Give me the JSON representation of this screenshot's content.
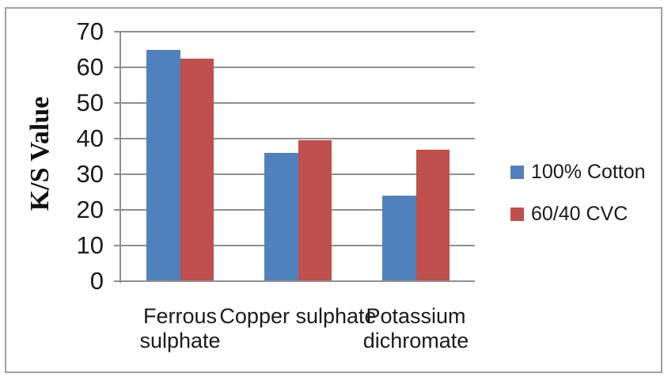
{
  "chart_data": {
    "type": "bar",
    "title": "",
    "categories": [
      "Ferrous sulphate",
      "Copper sulphate",
      "Potassium dichromate"
    ],
    "series": [
      {
        "name": "100% Cotton",
        "color": "#4f81bd",
        "values": [
          65,
          36,
          24
        ]
      },
      {
        "name": "60/40 CVC",
        "color": "#c0504d",
        "values": [
          62.5,
          39.5,
          37
        ]
      }
    ],
    "xlabel": "",
    "ylabel": "K/S Value",
    "ylim": [
      0,
      70
    ],
    "y_ticks": [
      0,
      10,
      20,
      30,
      40,
      50,
      60,
      70
    ],
    "grid": "horizontal",
    "legend_position": "right"
  },
  "styles": {
    "grid_color": "#8f8f8f",
    "axis_color": "#8f8f8f",
    "frame_color": "#a0a0a0",
    "text_color": "#1a1a1a",
    "background": "#ffffff"
  }
}
